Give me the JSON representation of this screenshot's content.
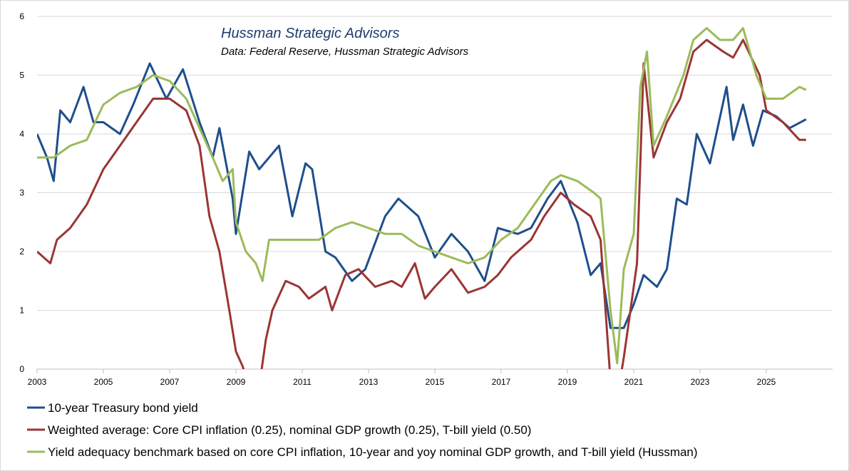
{
  "chart_data": {
    "type": "line",
    "title": "Hussman Strategic Advisors",
    "subtitle": "Data: Federal Reserve, Hussman Strategic Advisors",
    "xlabel": "",
    "ylabel": "",
    "xlim": [
      2003,
      2027
    ],
    "ylim": [
      0,
      6
    ],
    "x_ticks": [
      "2003",
      "2005",
      "2007",
      "2009",
      "2011",
      "2013",
      "2015",
      "2017",
      "2019",
      "2021",
      "2023",
      "2025"
    ],
    "y_ticks": [
      "0",
      "1",
      "2",
      "3",
      "4",
      "5",
      "6"
    ],
    "grid": "horizontal",
    "legend_position": "bottom",
    "series": [
      {
        "name": "10-year Treasury bond yield",
        "color": "#1f4e8c",
        "x": [
          2003.0,
          2003.3,
          2003.5,
          2003.7,
          2004.0,
          2004.4,
          2004.7,
          2005.0,
          2005.5,
          2005.9,
          2006.4,
          2006.9,
          2007.4,
          2007.9,
          2008.3,
          2008.5,
          2008.9,
          2009.0,
          2009.4,
          2009.7,
          2010.3,
          2010.7,
          2011.1,
          2011.3,
          2011.7,
          2012.0,
          2012.5,
          2012.9,
          2013.5,
          2013.9,
          2014.5,
          2015.0,
          2015.5,
          2016.0,
          2016.5,
          2016.9,
          2017.5,
          2017.9,
          2018.4,
          2018.8,
          2019.3,
          2019.7,
          2020.0,
          2020.3,
          2020.7,
          2021.0,
          2021.3,
          2021.7,
          2022.0,
          2022.3,
          2022.6,
          2022.9,
          2023.3,
          2023.8,
          2024.0,
          2024.3,
          2024.6,
          2024.9,
          2025.3,
          2025.7,
          2026.2
        ],
        "y": [
          4.0,
          3.6,
          3.2,
          4.4,
          4.2,
          4.8,
          4.2,
          4.2,
          4.0,
          4.5,
          5.2,
          4.6,
          5.1,
          4.2,
          3.6,
          4.1,
          2.9,
          2.3,
          3.7,
          3.4,
          3.8,
          2.6,
          3.5,
          3.4,
          2.0,
          1.9,
          1.5,
          1.7,
          2.6,
          2.9,
          2.6,
          1.9,
          2.3,
          2.0,
          1.5,
          2.4,
          2.3,
          2.4,
          2.9,
          3.2,
          2.5,
          1.6,
          1.8,
          0.7,
          0.7,
          1.1,
          1.6,
          1.4,
          1.7,
          2.9,
          2.8,
          4.0,
          3.5,
          4.8,
          3.9,
          4.5,
          3.8,
          4.4,
          4.3,
          4.1,
          4.25
        ]
      },
      {
        "name": "Weighted average: Core CPI inflation (0.25), nominal GDP growth (0.25), T-bill yield (0.50)",
        "color": "#9b3535",
        "x": [
          2003.0,
          2003.4,
          2003.6,
          2004.0,
          2004.5,
          2005.0,
          2005.5,
          2006.0,
          2006.5,
          2007.0,
          2007.5,
          2007.9,
          2008.2,
          2008.5,
          2008.8,
          2009.0,
          2009.2,
          2009.4,
          2009.7,
          2009.9,
          2010.1,
          2010.5,
          2010.9,
          2011.2,
          2011.7,
          2011.9,
          2012.3,
          2012.7,
          2013.2,
          2013.7,
          2014.0,
          2014.4,
          2014.7,
          2015.0,
          2015.5,
          2016.0,
          2016.5,
          2016.9,
          2017.3,
          2017.9,
          2018.3,
          2018.8,
          2019.2,
          2019.7,
          2020.0,
          2020.3,
          2020.5,
          2020.7,
          2020.9,
          2021.1,
          2021.3,
          2021.6,
          2022.0,
          2022.4,
          2022.8,
          2023.2,
          2023.7,
          2024.0,
          2024.3,
          2024.8,
          2025.0,
          2025.5,
          2026.0,
          2026.2
        ],
        "y": [
          2.0,
          1.8,
          2.2,
          2.4,
          2.8,
          3.4,
          3.8,
          4.2,
          4.6,
          4.6,
          4.4,
          3.8,
          2.6,
          2.0,
          1.0,
          0.3,
          0.05,
          -0.3,
          -0.3,
          0.5,
          1.0,
          1.5,
          1.4,
          1.2,
          1.4,
          1.0,
          1.6,
          1.7,
          1.4,
          1.5,
          1.4,
          1.8,
          1.2,
          1.4,
          1.7,
          1.3,
          1.4,
          1.6,
          1.9,
          2.2,
          2.6,
          3.0,
          2.8,
          2.6,
          2.2,
          -0.2,
          -0.5,
          0.2,
          1.0,
          1.8,
          5.2,
          3.6,
          4.2,
          4.6,
          5.4,
          5.6,
          5.4,
          5.3,
          5.6,
          5.0,
          4.4,
          4.2,
          3.9,
          3.9
        ]
      },
      {
        "name": "Yield adequacy benchmark based on core CPI inflation, 10-year and yoy nominal GDP growth, and T-bill yield (Hussman)",
        "color": "#9bbb59",
        "x": [
          2003.0,
          2003.5,
          2004.0,
          2004.5,
          2005.0,
          2005.5,
          2006.0,
          2006.5,
          2007.0,
          2007.5,
          2007.9,
          2008.3,
          2008.6,
          2008.9,
          2009.0,
          2009.3,
          2009.6,
          2009.8,
          2010.0,
          2010.5,
          2011.0,
          2011.5,
          2012.0,
          2012.5,
          2013.0,
          2013.5,
          2014.0,
          2014.5,
          2015.0,
          2015.5,
          2016.0,
          2016.5,
          2017.0,
          2017.5,
          2018.0,
          2018.5,
          2018.8,
          2019.3,
          2019.8,
          2020.0,
          2020.3,
          2020.5,
          2020.7,
          2021.0,
          2021.2,
          2021.4,
          2021.6,
          2022.0,
          2022.5,
          2022.8,
          2023.2,
          2023.6,
          2024.0,
          2024.3,
          2024.7,
          2025.0,
          2025.5,
          2026.0,
          2026.2
        ],
        "y": [
          3.6,
          3.6,
          3.8,
          3.9,
          4.5,
          4.7,
          4.8,
          5.0,
          4.9,
          4.6,
          4.1,
          3.6,
          3.2,
          3.4,
          2.5,
          2.0,
          1.8,
          1.5,
          2.2,
          2.2,
          2.2,
          2.2,
          2.4,
          2.5,
          2.4,
          2.3,
          2.3,
          2.1,
          2.0,
          1.9,
          1.8,
          1.9,
          2.2,
          2.4,
          2.8,
          3.2,
          3.3,
          3.2,
          3.0,
          2.9,
          1.0,
          0.1,
          1.7,
          2.3,
          4.8,
          5.4,
          3.8,
          4.3,
          5.0,
          5.6,
          5.8,
          5.6,
          5.6,
          5.8,
          5.0,
          4.6,
          4.6,
          4.8,
          4.75
        ]
      }
    ]
  }
}
